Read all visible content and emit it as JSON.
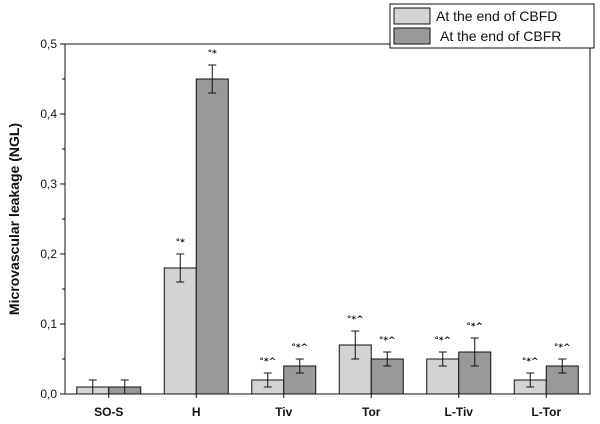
{
  "chart_data": {
    "type": "bar",
    "title": "",
    "xlabel": "",
    "ylabel": "Microvascular leakage (NGL)",
    "ylim": [
      0,
      0.5
    ],
    "yticks": [
      "0,0",
      "0,1",
      "0,2",
      "0,3",
      "0,4",
      "0,5"
    ],
    "categories": [
      "SO-S",
      "H",
      "Tiv",
      "Tor",
      "L-Tiv",
      "L-Tor"
    ],
    "legend_position": "top-right",
    "grid": false,
    "series": [
      {
        "name": "At the end of CBFD",
        "color": "#d3d3d3",
        "values": [
          0.01,
          0.18,
          0.02,
          0.07,
          0.05,
          0.02
        ],
        "errors": [
          0.01,
          0.02,
          0.01,
          0.02,
          0.01,
          0.01
        ],
        "annotations": [
          "",
          "°*",
          "°*^",
          "°*^",
          "°*^",
          "°*^"
        ]
      },
      {
        "name": "At the end of CBFR",
        "color": "#999999",
        "values": [
          0.01,
          0.45,
          0.04,
          0.05,
          0.06,
          0.04
        ],
        "errors": [
          0.01,
          0.02,
          0.01,
          0.01,
          0.02,
          0.01
        ],
        "annotations": [
          "",
          "°*",
          "°*^",
          "°*^",
          "°*^",
          "°*^"
        ]
      }
    ]
  }
}
